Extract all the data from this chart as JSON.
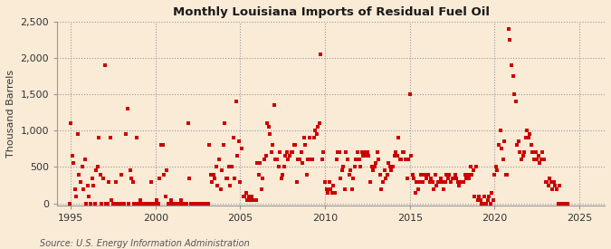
{
  "title": "Monthly Louisiana Imports of Residual Fuel Oil",
  "ylabel": "Thousand Barrels",
  "source": "Source: U.S. Energy Information Administration",
  "background_color": "#faebd7",
  "plot_bg_color": "#faebd7",
  "marker_color": "#cc0000",
  "marker_size": 6,
  "xlim": [
    1994.2,
    2026.5
  ],
  "ylim": [
    -30,
    2500
  ],
  "yticks": [
    0,
    500,
    1000,
    1500,
    2000,
    2500
  ],
  "xticks": [
    1995,
    2000,
    2005,
    2010,
    2015,
    2020,
    2025
  ],
  "data": [
    [
      1994.917,
      0
    ],
    [
      1995.0,
      1100
    ],
    [
      1995.083,
      650
    ],
    [
      1995.167,
      550
    ],
    [
      1995.25,
      200
    ],
    [
      1995.333,
      100
    ],
    [
      1995.417,
      950
    ],
    [
      1995.5,
      400
    ],
    [
      1995.583,
      300
    ],
    [
      1995.667,
      500
    ],
    [
      1995.75,
      200
    ],
    [
      1995.833,
      600
    ],
    [
      1995.917,
      0
    ],
    [
      1996.0,
      250
    ],
    [
      1996.083,
      100
    ],
    [
      1996.167,
      0
    ],
    [
      1996.25,
      350
    ],
    [
      1996.333,
      250
    ],
    [
      1996.417,
      0
    ],
    [
      1996.5,
      450
    ],
    [
      1996.583,
      500
    ],
    [
      1996.667,
      900
    ],
    [
      1996.75,
      400
    ],
    [
      1996.833,
      0
    ],
    [
      1996.917,
      350
    ],
    [
      1997.0,
      1900
    ],
    [
      1997.083,
      0
    ],
    [
      1997.167,
      0
    ],
    [
      1997.25,
      300
    ],
    [
      1997.333,
      900
    ],
    [
      1997.417,
      50
    ],
    [
      1997.5,
      0
    ],
    [
      1997.583,
      0
    ],
    [
      1997.667,
      300
    ],
    [
      1997.75,
      0
    ],
    [
      1997.833,
      0
    ],
    [
      1997.917,
      0
    ],
    [
      1998.0,
      400
    ],
    [
      1998.083,
      0
    ],
    [
      1998.167,
      0
    ],
    [
      1998.25,
      950
    ],
    [
      1998.333,
      1300
    ],
    [
      1998.417,
      0
    ],
    [
      1998.5,
      450
    ],
    [
      1998.583,
      350
    ],
    [
      1998.667,
      300
    ],
    [
      1998.75,
      0
    ],
    [
      1998.833,
      0
    ],
    [
      1998.917,
      900
    ],
    [
      1999.0,
      0
    ],
    [
      1999.083,
      50
    ],
    [
      1999.167,
      0
    ],
    [
      1999.25,
      0
    ],
    [
      1999.333,
      0
    ],
    [
      1999.417,
      0
    ],
    [
      1999.5,
      0
    ],
    [
      1999.583,
      0
    ],
    [
      1999.667,
      0
    ],
    [
      1999.75,
      300
    ],
    [
      1999.833,
      0
    ],
    [
      1999.917,
      0
    ],
    [
      2000.0,
      0
    ],
    [
      2000.083,
      50
    ],
    [
      2000.167,
      0
    ],
    [
      2000.25,
      350
    ],
    [
      2000.333,
      800
    ],
    [
      2000.417,
      800
    ],
    [
      2000.5,
      400
    ],
    [
      2000.583,
      100
    ],
    [
      2000.667,
      450
    ],
    [
      2000.75,
      0
    ],
    [
      2000.833,
      0
    ],
    [
      2000.917,
      50
    ],
    [
      2001.0,
      0
    ],
    [
      2001.083,
      0
    ],
    [
      2001.167,
      0
    ],
    [
      2001.25,
      0
    ],
    [
      2001.333,
      0
    ],
    [
      2001.417,
      0
    ],
    [
      2001.5,
      50
    ],
    [
      2001.583,
      0
    ],
    [
      2001.667,
      0
    ],
    [
      2001.75,
      0
    ],
    [
      2001.833,
      0
    ],
    [
      2001.917,
      1100
    ],
    [
      2002.0,
      350
    ],
    [
      2002.083,
      0
    ],
    [
      2002.167,
      0
    ],
    [
      2002.25,
      0
    ],
    [
      2002.333,
      0
    ],
    [
      2002.417,
      0
    ],
    [
      2002.5,
      0
    ],
    [
      2002.583,
      0
    ],
    [
      2002.667,
      0
    ],
    [
      2002.75,
      0
    ],
    [
      2002.833,
      0
    ],
    [
      2002.917,
      0
    ],
    [
      2003.0,
      0
    ],
    [
      2003.083,
      0
    ],
    [
      2003.167,
      800
    ],
    [
      2003.25,
      400
    ],
    [
      2003.333,
      300
    ],
    [
      2003.417,
      400
    ],
    [
      2003.5,
      350
    ],
    [
      2003.583,
      500
    ],
    [
      2003.667,
      250
    ],
    [
      2003.75,
      600
    ],
    [
      2003.833,
      200
    ],
    [
      2003.917,
      450
    ],
    [
      2004.0,
      800
    ],
    [
      2004.083,
      1100
    ],
    [
      2004.167,
      350
    ],
    [
      2004.25,
      350
    ],
    [
      2004.333,
      500
    ],
    [
      2004.417,
      250
    ],
    [
      2004.5,
      500
    ],
    [
      2004.583,
      900
    ],
    [
      2004.667,
      350
    ],
    [
      2004.75,
      1400
    ],
    [
      2004.833,
      650
    ],
    [
      2004.917,
      850
    ],
    [
      2005.0,
      300
    ],
    [
      2005.083,
      750
    ],
    [
      2005.167,
      100
    ],
    [
      2005.25,
      100
    ],
    [
      2005.333,
      150
    ],
    [
      2005.417,
      50
    ],
    [
      2005.5,
      100
    ],
    [
      2005.583,
      50
    ],
    [
      2005.667,
      100
    ],
    [
      2005.75,
      50
    ],
    [
      2005.833,
      50
    ],
    [
      2005.917,
      50
    ],
    [
      2006.0,
      550
    ],
    [
      2006.083,
      400
    ],
    [
      2006.167,
      550
    ],
    [
      2006.25,
      200
    ],
    [
      2006.333,
      350
    ],
    [
      2006.417,
      600
    ],
    [
      2006.5,
      650
    ],
    [
      2006.583,
      1100
    ],
    [
      2006.667,
      1050
    ],
    [
      2006.75,
      950
    ],
    [
      2006.833,
      700
    ],
    [
      2006.917,
      800
    ],
    [
      2007.0,
      1350
    ],
    [
      2007.083,
      600
    ],
    [
      2007.167,
      600
    ],
    [
      2007.25,
      500
    ],
    [
      2007.333,
      700
    ],
    [
      2007.417,
      350
    ],
    [
      2007.5,
      400
    ],
    [
      2007.583,
      500
    ],
    [
      2007.667,
      650
    ],
    [
      2007.75,
      700
    ],
    [
      2007.833,
      600
    ],
    [
      2007.917,
      650
    ],
    [
      2008.0,
      700
    ],
    [
      2008.083,
      700
    ],
    [
      2008.167,
      800
    ],
    [
      2008.25,
      800
    ],
    [
      2008.333,
      300
    ],
    [
      2008.417,
      600
    ],
    [
      2008.5,
      600
    ],
    [
      2008.583,
      700
    ],
    [
      2008.667,
      550
    ],
    [
      2008.75,
      900
    ],
    [
      2008.833,
      800
    ],
    [
      2008.917,
      400
    ],
    [
      2009.0,
      600
    ],
    [
      2009.083,
      900
    ],
    [
      2009.167,
      600
    ],
    [
      2009.25,
      600
    ],
    [
      2009.333,
      900
    ],
    [
      2009.417,
      1000
    ],
    [
      2009.5,
      950
    ],
    [
      2009.583,
      1050
    ],
    [
      2009.667,
      1100
    ],
    [
      2009.75,
      2050
    ],
    [
      2009.833,
      600
    ],
    [
      2009.917,
      700
    ],
    [
      2010.0,
      300
    ],
    [
      2010.083,
      200
    ],
    [
      2010.167,
      150
    ],
    [
      2010.25,
      300
    ],
    [
      2010.333,
      200
    ],
    [
      2010.417,
      150
    ],
    [
      2010.5,
      250
    ],
    [
      2010.583,
      150
    ],
    [
      2010.667,
      600
    ],
    [
      2010.75,
      700
    ],
    [
      2010.833,
      700
    ],
    [
      2010.917,
      350
    ],
    [
      2011.0,
      450
    ],
    [
      2011.083,
      500
    ],
    [
      2011.167,
      200
    ],
    [
      2011.25,
      700
    ],
    [
      2011.333,
      600
    ],
    [
      2011.417,
      400
    ],
    [
      2011.5,
      450
    ],
    [
      2011.583,
      200
    ],
    [
      2011.667,
      350
    ],
    [
      2011.75,
      500
    ],
    [
      2011.833,
      600
    ],
    [
      2011.917,
      700
    ],
    [
      2012.0,
      600
    ],
    [
      2012.083,
      500
    ],
    [
      2012.167,
      700
    ],
    [
      2012.25,
      650
    ],
    [
      2012.333,
      700
    ],
    [
      2012.417,
      650
    ],
    [
      2012.5,
      700
    ],
    [
      2012.583,
      650
    ],
    [
      2012.667,
      300
    ],
    [
      2012.75,
      500
    ],
    [
      2012.833,
      450
    ],
    [
      2012.917,
      500
    ],
    [
      2013.0,
      550
    ],
    [
      2013.083,
      700
    ],
    [
      2013.167,
      600
    ],
    [
      2013.25,
      400
    ],
    [
      2013.333,
      200
    ],
    [
      2013.417,
      300
    ],
    [
      2013.5,
      450
    ],
    [
      2013.583,
      350
    ],
    [
      2013.667,
      400
    ],
    [
      2013.75,
      550
    ],
    [
      2013.833,
      500
    ],
    [
      2013.917,
      450
    ],
    [
      2014.0,
      500
    ],
    [
      2014.083,
      650
    ],
    [
      2014.167,
      700
    ],
    [
      2014.25,
      650
    ],
    [
      2014.333,
      900
    ],
    [
      2014.417,
      600
    ],
    [
      2014.5,
      600
    ],
    [
      2014.583,
      700
    ],
    [
      2014.667,
      700
    ],
    [
      2014.75,
      600
    ],
    [
      2014.833,
      350
    ],
    [
      2014.917,
      600
    ],
    [
      2015.0,
      1500
    ],
    [
      2015.083,
      650
    ],
    [
      2015.167,
      400
    ],
    [
      2015.25,
      350
    ],
    [
      2015.333,
      150
    ],
    [
      2015.417,
      300
    ],
    [
      2015.5,
      200
    ],
    [
      2015.583,
      300
    ],
    [
      2015.667,
      400
    ],
    [
      2015.75,
      300
    ],
    [
      2015.833,
      400
    ],
    [
      2015.917,
      400
    ],
    [
      2016.0,
      350
    ],
    [
      2016.083,
      400
    ],
    [
      2016.167,
      300
    ],
    [
      2016.25,
      350
    ],
    [
      2016.333,
      300
    ],
    [
      2016.417,
      200
    ],
    [
      2016.5,
      400
    ],
    [
      2016.583,
      250
    ],
    [
      2016.667,
      300
    ],
    [
      2016.75,
      300
    ],
    [
      2016.833,
      350
    ],
    [
      2016.917,
      300
    ],
    [
      2017.0,
      200
    ],
    [
      2017.083,
      300
    ],
    [
      2017.167,
      400
    ],
    [
      2017.25,
      350
    ],
    [
      2017.333,
      400
    ],
    [
      2017.417,
      300
    ],
    [
      2017.5,
      350
    ],
    [
      2017.583,
      350
    ],
    [
      2017.667,
      400
    ],
    [
      2017.75,
      350
    ],
    [
      2017.833,
      300
    ],
    [
      2017.917,
      250
    ],
    [
      2018.0,
      300
    ],
    [
      2018.083,
      300
    ],
    [
      2018.167,
      300
    ],
    [
      2018.25,
      400
    ],
    [
      2018.333,
      350
    ],
    [
      2018.417,
      400
    ],
    [
      2018.5,
      350
    ],
    [
      2018.583,
      500
    ],
    [
      2018.667,
      400
    ],
    [
      2018.75,
      450
    ],
    [
      2018.833,
      100
    ],
    [
      2018.917,
      500
    ],
    [
      2019.0,
      50
    ],
    [
      2019.083,
      100
    ],
    [
      2019.167,
      50
    ],
    [
      2019.25,
      0
    ],
    [
      2019.333,
      0
    ],
    [
      2019.417,
      100
    ],
    [
      2019.5,
      0
    ],
    [
      2019.583,
      50
    ],
    [
      2019.667,
      100
    ],
    [
      2019.75,
      0
    ],
    [
      2019.833,
      150
    ],
    [
      2019.917,
      50
    ],
    [
      2020.0,
      400
    ],
    [
      2020.083,
      500
    ],
    [
      2020.167,
      450
    ],
    [
      2020.25,
      800
    ],
    [
      2020.333,
      1000
    ],
    [
      2020.417,
      750
    ],
    [
      2020.5,
      600
    ],
    [
      2020.583,
      850
    ],
    [
      2020.667,
      400
    ],
    [
      2020.75,
      400
    ],
    [
      2020.833,
      2400
    ],
    [
      2020.917,
      2250
    ],
    [
      2021.0,
      1900
    ],
    [
      2021.083,
      1750
    ],
    [
      2021.167,
      1500
    ],
    [
      2021.25,
      1400
    ],
    [
      2021.333,
      800
    ],
    [
      2021.417,
      850
    ],
    [
      2021.5,
      700
    ],
    [
      2021.583,
      600
    ],
    [
      2021.667,
      650
    ],
    [
      2021.75,
      700
    ],
    [
      2021.833,
      900
    ],
    [
      2021.917,
      1000
    ],
    [
      2022.0,
      900
    ],
    [
      2022.083,
      950
    ],
    [
      2022.167,
      800
    ],
    [
      2022.25,
      700
    ],
    [
      2022.333,
      600
    ],
    [
      2022.417,
      700
    ],
    [
      2022.5,
      600
    ],
    [
      2022.583,
      650
    ],
    [
      2022.667,
      550
    ],
    [
      2022.75,
      600
    ],
    [
      2022.833,
      700
    ],
    [
      2022.917,
      600
    ],
    [
      2023.0,
      300
    ],
    [
      2023.083,
      300
    ],
    [
      2023.167,
      250
    ],
    [
      2023.25,
      350
    ],
    [
      2023.333,
      300
    ],
    [
      2023.417,
      200
    ],
    [
      2023.5,
      300
    ],
    [
      2023.583,
      250
    ],
    [
      2023.667,
      200
    ],
    [
      2023.75,
      0
    ],
    [
      2023.833,
      250
    ],
    [
      2023.917,
      0
    ],
    [
      2024.0,
      0
    ],
    [
      2024.083,
      0
    ],
    [
      2024.167,
      0
    ],
    [
      2024.25,
      0
    ],
    [
      2024.333,
      0
    ]
  ]
}
